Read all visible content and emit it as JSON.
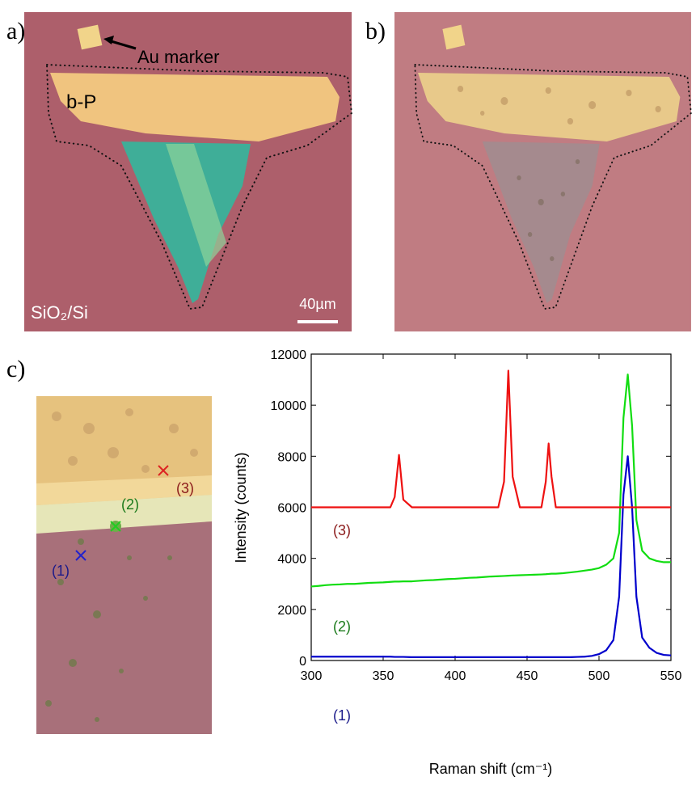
{
  "panels": {
    "a": {
      "label": "a)",
      "marker_label": "Au marker",
      "flake_label": "b-P",
      "substrate": "SiO₂/Si",
      "scale_bar": "40µm"
    },
    "b": {
      "label": "b)"
    },
    "c": {
      "label": "c)",
      "points": [
        "(1)",
        "(2)",
        "(3)"
      ]
    }
  },
  "chart_data": {
    "type": "line",
    "x_label": "Raman shift (cm⁻¹)",
    "y_label": "Intensity (counts)",
    "x": [
      300,
      305,
      310,
      315,
      320,
      325,
      330,
      335,
      340,
      345,
      350,
      355,
      358,
      361,
      364,
      370,
      375,
      380,
      385,
      390,
      395,
      400,
      405,
      410,
      415,
      420,
      425,
      430,
      434,
      437,
      440,
      445,
      450,
      455,
      460,
      463,
      465,
      467,
      470,
      475,
      480,
      485,
      490,
      495,
      500,
      505,
      510,
      514,
      517,
      520,
      523,
      526,
      530,
      535,
      540,
      545,
      550
    ],
    "series": [
      {
        "name": "(1)",
        "color": "#0000cc",
        "label_color": "#1a1a8a",
        "values": [
          150,
          150,
          150,
          150,
          150,
          150,
          150,
          150,
          150,
          150,
          150,
          150,
          140,
          140,
          140,
          130,
          130,
          130,
          130,
          130,
          130,
          130,
          130,
          130,
          130,
          130,
          130,
          130,
          130,
          130,
          130,
          130,
          130,
          130,
          130,
          130,
          130,
          130,
          130,
          130,
          130,
          140,
          150,
          180,
          250,
          400,
          800,
          2500,
          6500,
          8000,
          6000,
          2500,
          900,
          500,
          300,
          220,
          200
        ]
      },
      {
        "name": "(2)",
        "color": "#11dd11",
        "label_color": "#1a7a1a",
        "values": [
          2900,
          2920,
          2950,
          2970,
          2980,
          3000,
          3000,
          3020,
          3040,
          3050,
          3060,
          3080,
          3090,
          3090,
          3100,
          3100,
          3120,
          3140,
          3150,
          3170,
          3190,
          3200,
          3220,
          3240,
          3250,
          3270,
          3290,
          3300,
          3310,
          3320,
          3330,
          3340,
          3350,
          3360,
          3370,
          3380,
          3390,
          3400,
          3400,
          3420,
          3450,
          3480,
          3520,
          3560,
          3620,
          3750,
          4000,
          5000,
          9500,
          11200,
          9200,
          5500,
          4300,
          4000,
          3900,
          3850,
          3850
        ]
      },
      {
        "name": "(3)",
        "color": "#ee1111",
        "label_color": "#8b1a1a",
        "values": [
          6000,
          6000,
          6000,
          6000,
          6000,
          6000,
          6000,
          6000,
          6000,
          6000,
          6000,
          6000,
          6400,
          8050,
          6300,
          6000,
          6000,
          6000,
          6000,
          6000,
          6000,
          6000,
          6000,
          6000,
          6000,
          6000,
          6000,
          6000,
          7000,
          11350,
          7200,
          6000,
          6000,
          6000,
          6000,
          7000,
          8500,
          7200,
          6000,
          6000,
          6000,
          6000,
          6000,
          6000,
          6000,
          6000,
          6000,
          6000,
          6000,
          6000,
          6000,
          6000,
          6000,
          6000,
          6000,
          6000,
          6000
        ]
      }
    ],
    "xlim": [
      300,
      550
    ],
    "ylim": [
      0,
      12000
    ],
    "xticks": [
      300,
      350,
      400,
      450,
      500,
      550
    ],
    "yticks": [
      0,
      2000,
      4000,
      6000,
      8000,
      10000,
      12000
    ],
    "grid": false
  }
}
